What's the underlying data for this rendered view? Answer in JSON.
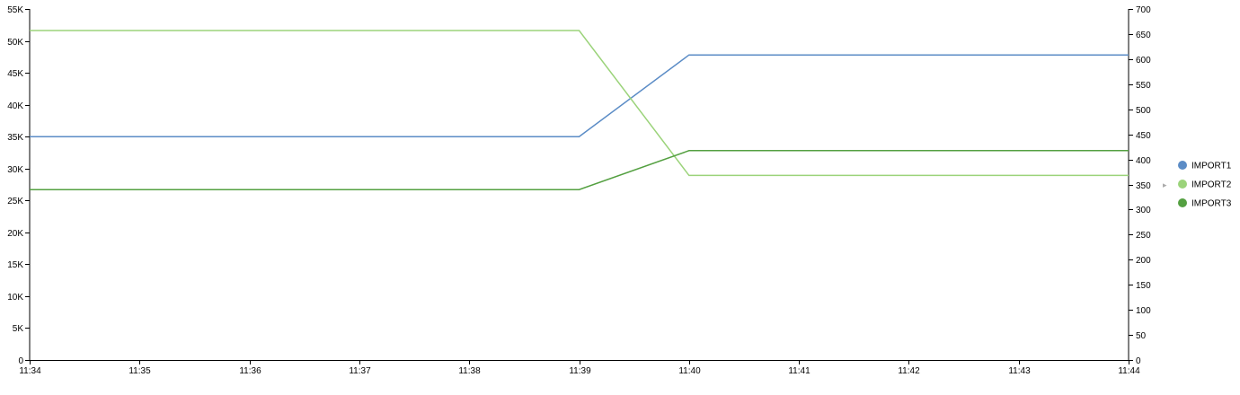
{
  "chart_data": {
    "type": "line",
    "x": [
      "11:34",
      "11:35",
      "11:36",
      "11:37",
      "11:38",
      "11:39",
      "11:40",
      "11:41",
      "11:42",
      "11:43",
      "11:44"
    ],
    "x_ticks": [
      "11:34",
      "11:35",
      "11:36",
      "11:37",
      "11:38",
      "11:39",
      "11:40",
      "11:41",
      "11:42",
      "11:43",
      "11:44"
    ],
    "y_left": {
      "range": [
        0,
        55000
      ],
      "ticks": [
        0,
        5000,
        10000,
        15000,
        20000,
        25000,
        30000,
        35000,
        40000,
        45000,
        50000,
        55000
      ],
      "tick_labels": [
        "0",
        "5K",
        "10K",
        "15K",
        "20K",
        "25K",
        "30K",
        "35K",
        "40K",
        "45K",
        "50K",
        "55K"
      ]
    },
    "y_right": {
      "range": [
        0,
        700
      ],
      "ticks": [
        0,
        50,
        100,
        150,
        200,
        250,
        300,
        350,
        400,
        450,
        500,
        550,
        600,
        650,
        700
      ],
      "tick_labels": [
        "0",
        "50",
        "100",
        "150",
        "200",
        "250",
        "300",
        "350",
        "400",
        "450",
        "500",
        "550",
        "600",
        "650",
        "700"
      ]
    },
    "series": [
      {
        "name": "IMPORT1",
        "axis": "left",
        "color": "#5b8cc6",
        "values": [
          35000,
          35000,
          35000,
          35000,
          35000,
          35000,
          47800,
          47800,
          47800,
          47800,
          47800
        ]
      },
      {
        "name": "IMPORT2",
        "axis": "right",
        "color": "#9bd37a",
        "values": [
          657,
          657,
          657,
          657,
          657,
          657,
          368,
          368,
          368,
          368,
          368
        ]
      },
      {
        "name": "IMPORT3",
        "axis": "left",
        "color": "#54a041",
        "values": [
          26700,
          26700,
          26700,
          26700,
          26700,
          26700,
          32800,
          32800,
          32800,
          32800,
          32800
        ]
      }
    ],
    "legend": {
      "placement": "right",
      "items": [
        "IMPORT1",
        "IMPORT2",
        "IMPORT3"
      ],
      "active_marker": "▸"
    },
    "grid": false
  }
}
